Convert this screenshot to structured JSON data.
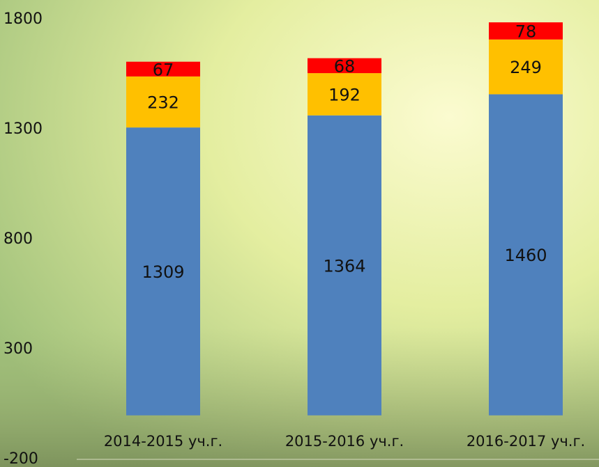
{
  "chart_data": {
    "type": "stacked_bar",
    "categories": [
      "2014-2015 уч.г.",
      "2015-2016 уч.г.",
      "2016-2017 уч.г."
    ],
    "series": [
      {
        "color": "#4f81bd",
        "values": [
          1309,
          1364,
          1460
        ]
      },
      {
        "color": "#ffc000",
        "values": [
          232,
          192,
          249
        ]
      },
      {
        "color": "#ff0000",
        "values": [
          67,
          68,
          78
        ]
      }
    ],
    "ylim": [
      -200,
      1800
    ],
    "yticks": [
      -200,
      300,
      800,
      1300,
      1800
    ],
    "grid": false
  }
}
